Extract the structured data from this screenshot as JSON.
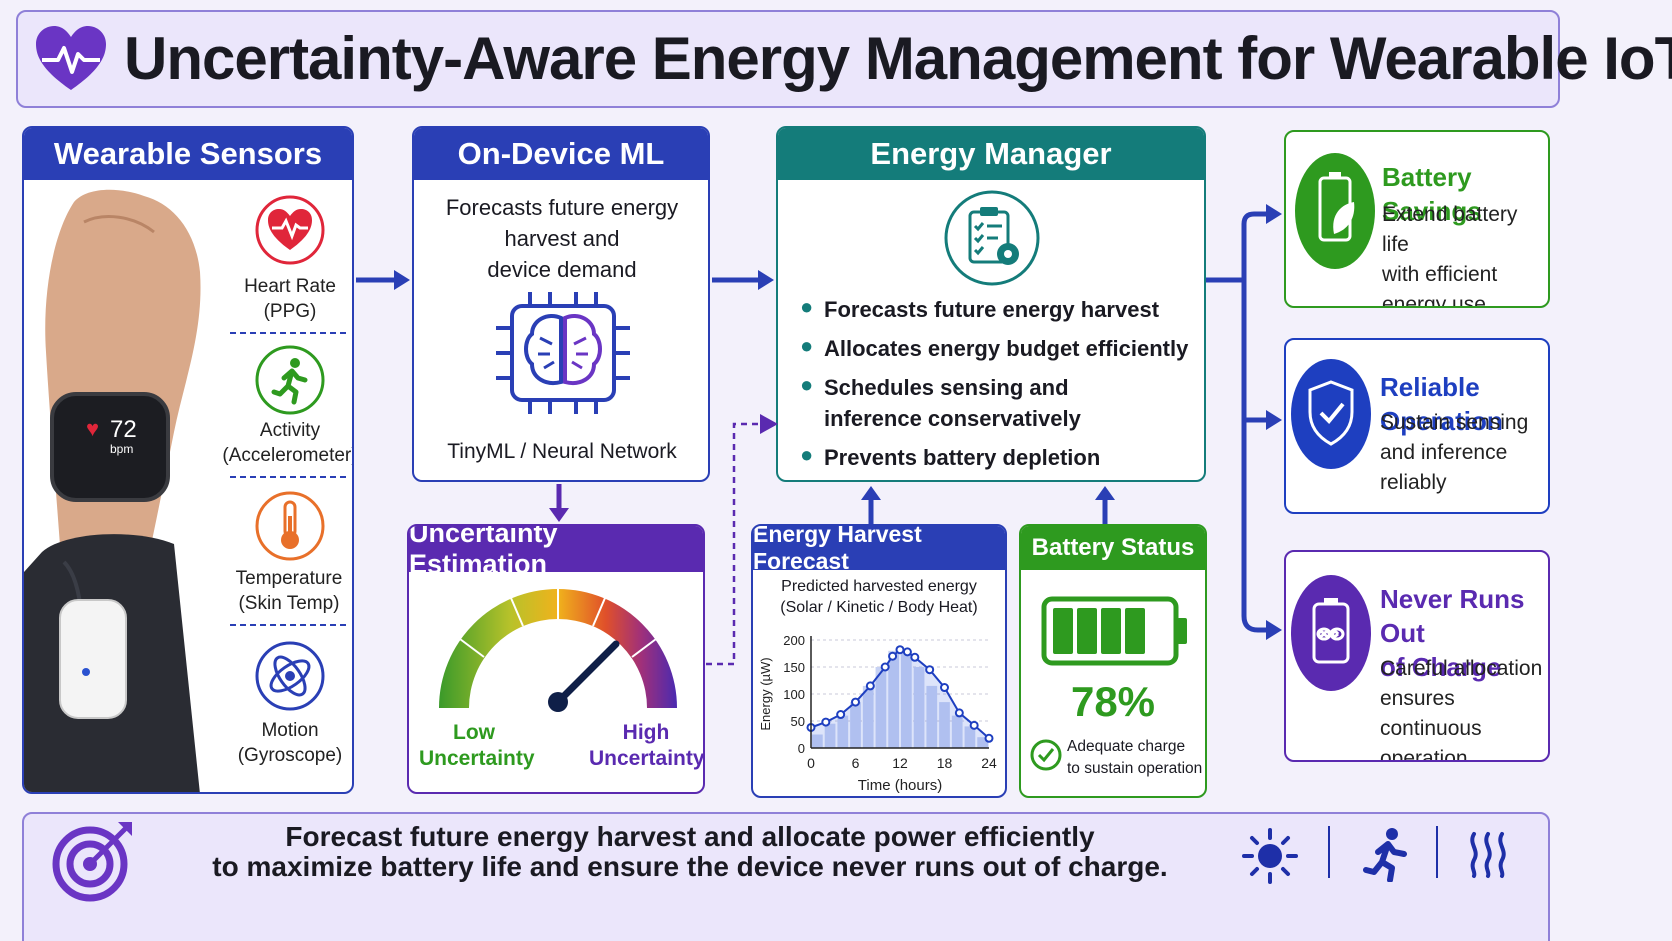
{
  "title": "Uncertainty-Aware Energy Management for Wearable IoT",
  "sensors": {
    "header": "Wearable Sensors",
    "watch_value": "72",
    "watch_unit": "bpm",
    "items": [
      {
        "line1": "Heart Rate",
        "line2": "(PPG)",
        "icon": "heart-pulse-icon"
      },
      {
        "line1": "Activity",
        "line2": "(Accelerometer)",
        "icon": "running-person-icon"
      },
      {
        "line1": "Temperature",
        "line2": "(Skin Temp)",
        "icon": "thermometer-icon"
      },
      {
        "line1": "Motion",
        "line2": "(Gyroscope)",
        "icon": "gyroscope-icon"
      }
    ]
  },
  "ml": {
    "header": "On-Device ML",
    "desc": [
      "Forecasts future energy",
      "harvest and",
      "device demand"
    ],
    "caption": "TinyML / Neural Network"
  },
  "manager": {
    "header": "Energy Manager",
    "bullets": [
      [
        "Forecasts future energy harvest"
      ],
      [
        "Allocates energy budget efficiently"
      ],
      [
        "Schedules sensing and",
        "inference conservatively"
      ],
      [
        "Prevents battery depletion"
      ]
    ]
  },
  "uncertainty": {
    "header": "Uncertainty Estimation",
    "low": [
      "Low",
      "Uncertainty"
    ],
    "high": [
      "High",
      "Uncertainty"
    ],
    "needle_level": 0.75
  },
  "forecast": {
    "header": "Energy Harvest Forecast",
    "subtitle": [
      "Predicted harvested energy",
      "(Solar / Kinetic / Body Heat)"
    ]
  },
  "battery": {
    "header": "Battery Status",
    "level_text": "78%",
    "level": 0.78,
    "note": [
      "Adequate charge",
      "to sustain operation"
    ]
  },
  "outcomes": [
    {
      "title": [
        "Battery Savings"
      ],
      "text": [
        "Extend battery life",
        "with efficient",
        "energy use"
      ],
      "color": "#2e9a1f",
      "icon": "battery-leaf-icon"
    },
    {
      "title": [
        "Reliable Operation"
      ],
      "text": [
        "Sustain sensing",
        "and inference",
        "reliably"
      ],
      "color": "#1e3fc0",
      "icon": "shield-check-icon"
    },
    {
      "title": [
        "Never Runs Out",
        "of Charge"
      ],
      "text": [
        "Careful allocation",
        "ensures continuous",
        "operation"
      ],
      "color": "#5a2ab0",
      "icon": "battery-infinity-icon"
    }
  ],
  "footer": {
    "line1": "Forecast future energy harvest and allocate power efficiently",
    "line2": "to maximize battery life and ensure the device never runs out of charge."
  },
  "chart_data": {
    "type": "area",
    "xlabel": "Time (hours)",
    "ylabel": "Energy (µW)",
    "xlim": [
      0,
      24
    ],
    "ylim": [
      0,
      200
    ],
    "xticks": [
      0,
      6,
      12,
      18,
      24
    ],
    "yticks": [
      0,
      50,
      100,
      150,
      200
    ],
    "grid": true,
    "x": [
      0,
      2,
      4,
      6,
      8,
      10,
      11,
      12,
      13,
      14,
      16,
      18,
      20,
      22,
      24
    ],
    "y": [
      38,
      48,
      62,
      85,
      115,
      150,
      170,
      182,
      178,
      168,
      145,
      112,
      65,
      42,
      18
    ],
    "bars": [
      25,
      45,
      60,
      85,
      115,
      150,
      180,
      180,
      150,
      115,
      85,
      60,
      40,
      20
    ]
  },
  "colors": {
    "blue": "#2a3fb5",
    "teal": "#147c7a",
    "purple": "#5a2ab0",
    "green": "#2e9a1f"
  }
}
